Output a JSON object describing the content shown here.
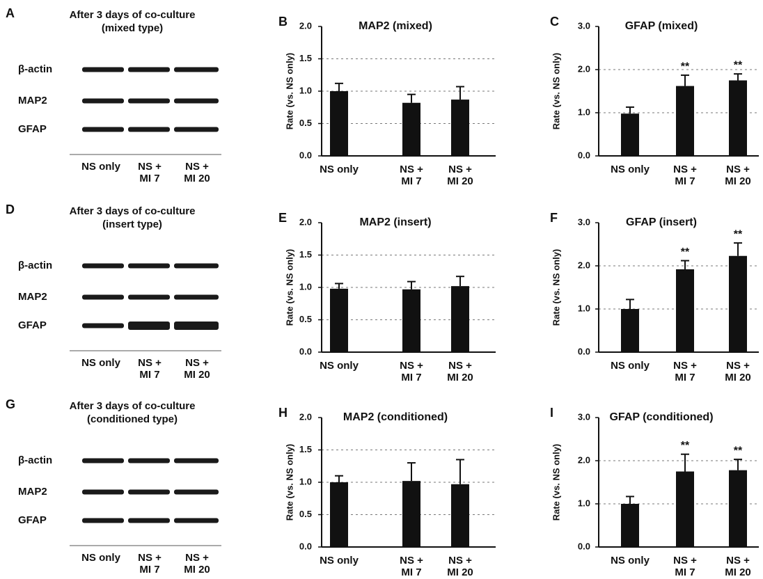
{
  "blots": [
    {
      "letter": "A",
      "title": [
        "After 3 days of co-culture",
        "(mixed type)"
      ],
      "rows": [
        "β-actin",
        "MAP2",
        "GFAP"
      ],
      "lanes": [
        [
          "NS only"
        ],
        [
          "NS +",
          "MI 7"
        ],
        [
          "NS +",
          "MI 20"
        ]
      ]
    },
    {
      "letter": "D",
      "title": [
        "After 3 days of co-culture",
        "(insert type)"
      ],
      "rows": [
        "β-actin",
        "MAP2",
        "GFAP"
      ],
      "lanes": [
        [
          "NS only"
        ],
        [
          "NS +",
          "MI 7"
        ],
        [
          "NS +",
          "MI 20"
        ]
      ]
    },
    {
      "letter": "G",
      "title": [
        "After 3 days of co-culture",
        "(conditioned type)"
      ],
      "rows": [
        "β-actin",
        "MAP2",
        "GFAP"
      ],
      "lanes": [
        [
          "NS only"
        ],
        [
          "NS +",
          "MI 7"
        ],
        [
          "NS +",
          "MI 20"
        ]
      ]
    }
  ],
  "chart_data": [
    {
      "type": "bar",
      "letter": "B",
      "title": "MAP2 (mixed)",
      "ylabel": "Rate (vs. NS only)",
      "categories": [
        [
          "NS only"
        ],
        [
          "NS +",
          "MI 7"
        ],
        [
          "NS +",
          "MI 20"
        ]
      ],
      "values": [
        1.0,
        0.82,
        0.87
      ],
      "errors": [
        0.12,
        0.13,
        0.2
      ],
      "significance": [
        null,
        null,
        null
      ],
      "color": "#111111",
      "ylim": [
        0,
        2
      ],
      "yticks": [
        {
          "value": 0,
          "label": "0.0"
        },
        {
          "value": 0.5,
          "label": "0.5"
        },
        {
          "value": 1,
          "label": "1.0"
        },
        {
          "value": 1.5,
          "label": "1.5"
        },
        {
          "value": 2,
          "label": "2.0"
        }
      ],
      "grid": true
    },
    {
      "type": "bar",
      "letter": "C",
      "title": "GFAP (mixed)",
      "ylabel": "Rate (vs. NS only)",
      "categories": [
        [
          "NS only"
        ],
        [
          "NS +",
          "MI 7"
        ],
        [
          "NS +",
          "MI 20"
        ]
      ],
      "values": [
        0.98,
        1.62,
        1.75
      ],
      "errors": [
        0.15,
        0.25,
        0.15
      ],
      "significance": [
        null,
        "**",
        "**"
      ],
      "color": "#111111",
      "ylim": [
        0,
        3
      ],
      "yticks": [
        {
          "value": 0,
          "label": "0.0"
        },
        {
          "value": 1,
          "label": "1.0"
        },
        {
          "value": 2,
          "label": "2.0"
        },
        {
          "value": 3,
          "label": "3.0"
        }
      ],
      "grid": true
    },
    {
      "type": "bar",
      "letter": "E",
      "title": "MAP2 (insert)",
      "ylabel": "Rate (vs. NS only)",
      "categories": [
        [
          "NS only"
        ],
        [
          "NS +",
          "MI 7"
        ],
        [
          "NS +",
          "MI 20"
        ]
      ],
      "values": [
        0.98,
        0.97,
        1.02
      ],
      "errors": [
        0.08,
        0.12,
        0.15
      ],
      "significance": [
        null,
        null,
        null
      ],
      "color": "#111111",
      "ylim": [
        0,
        2
      ],
      "yticks": [
        {
          "value": 0,
          "label": "0.0"
        },
        {
          "value": 0.5,
          "label": "0.5"
        },
        {
          "value": 1,
          "label": "1.0"
        },
        {
          "value": 1.5,
          "label": "1.5"
        },
        {
          "value": 2,
          "label": "2.0"
        }
      ],
      "grid": true
    },
    {
      "type": "bar",
      "letter": "F",
      "title": "GFAP (insert)",
      "ylabel": "Rate (vs. NS only)",
      "categories": [
        [
          "NS only"
        ],
        [
          "NS +",
          "MI 7"
        ],
        [
          "NS +",
          "MI 20"
        ]
      ],
      "values": [
        1.0,
        1.92,
        2.23
      ],
      "errors": [
        0.22,
        0.2,
        0.3
      ],
      "significance": [
        null,
        "**",
        "**"
      ],
      "color": "#111111",
      "ylim": [
        0,
        3
      ],
      "yticks": [
        {
          "value": 0,
          "label": "0.0"
        },
        {
          "value": 1,
          "label": "1.0"
        },
        {
          "value": 2,
          "label": "2.0"
        },
        {
          "value": 3,
          "label": "3.0"
        }
      ],
      "grid": true
    },
    {
      "type": "bar",
      "letter": "H",
      "title": "MAP2 (conditioned)",
      "ylabel": "Rate (vs. NS only)",
      "categories": [
        [
          "NS only"
        ],
        [
          "NS +",
          "MI 7"
        ],
        [
          "NS +",
          "MI 20"
        ]
      ],
      "values": [
        1.0,
        1.02,
        0.97
      ],
      "errors": [
        0.1,
        0.28,
        0.38
      ],
      "significance": [
        null,
        null,
        null
      ],
      "color": "#111111",
      "ylim": [
        0,
        2
      ],
      "yticks": [
        {
          "value": 0,
          "label": "0.0"
        },
        {
          "value": 0.5,
          "label": "0.5"
        },
        {
          "value": 1,
          "label": "1.0"
        },
        {
          "value": 1.5,
          "label": "1.5"
        },
        {
          "value": 2,
          "label": "2.0"
        }
      ],
      "grid": true
    },
    {
      "type": "bar",
      "letter": "I",
      "title": "GFAP (conditioned)",
      "ylabel": "Rate (vs. NS only)",
      "categories": [
        [
          "NS only"
        ],
        [
          "NS +",
          "MI 7"
        ],
        [
          "NS +",
          "MI 20"
        ]
      ],
      "values": [
        1.0,
        1.75,
        1.78
      ],
      "errors": [
        0.17,
        0.4,
        0.25
      ],
      "significance": [
        null,
        "**",
        "**"
      ],
      "color": "#111111",
      "ylim": [
        0,
        3
      ],
      "yticks": [
        {
          "value": 0,
          "label": "0.0"
        },
        {
          "value": 1,
          "label": "1.0"
        },
        {
          "value": 2,
          "label": "2.0"
        },
        {
          "value": 3,
          "label": "3.0"
        }
      ],
      "grid": true
    }
  ]
}
